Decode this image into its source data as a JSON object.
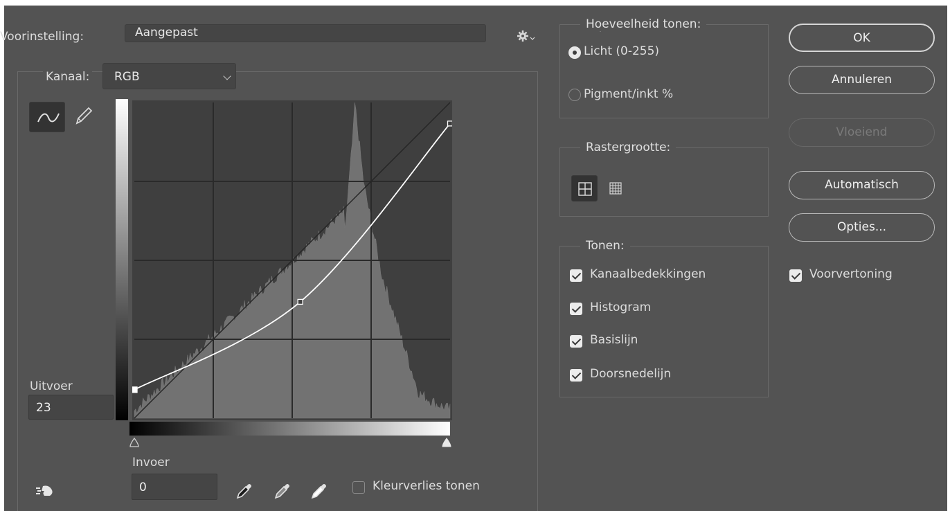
{
  "preset": {
    "label": "Voorinstelling:",
    "value": "Aangepast"
  },
  "channel": {
    "label": "Kanaal:",
    "value": "RGB"
  },
  "output": {
    "label": "Uitvoer",
    "value": "23"
  },
  "input": {
    "label": "Invoer",
    "value": "0"
  },
  "clipping_checkbox": {
    "label": "Kleurverlies tonen",
    "checked": false
  },
  "tone_amount": {
    "legend": "Hoeveelheid tonen:",
    "options": [
      {
        "label": "Licht (0-255)",
        "selected": true
      },
      {
        "label": "Pigment/inkt %",
        "selected": false
      }
    ]
  },
  "grid_size": {
    "legend": "Rastergrootte:",
    "selected": "simple"
  },
  "show": {
    "legend": "Tonen:",
    "options": [
      {
        "label": "Kanaalbedekkingen",
        "checked": true
      },
      {
        "label": "Histogram",
        "checked": true
      },
      {
        "label": "Basislijn",
        "checked": true
      },
      {
        "label": "Doorsnedelijn",
        "checked": true
      }
    ]
  },
  "buttons": {
    "ok": "OK",
    "cancel": "Annuleren",
    "smooth": "Vloeiend",
    "auto": "Automatisch",
    "options": "Opties..."
  },
  "preview": {
    "label": "Voorvertoning",
    "checked": true
  },
  "curve": {
    "control_points": [
      {
        "input": 0,
        "output": 23
      },
      {
        "input": 134,
        "output": 94
      },
      {
        "input": 255,
        "output": 238
      }
    ]
  },
  "icons": {
    "gear": "gear-icon",
    "curve_tool": "curve-tool-icon",
    "pencil": "pencil-icon",
    "hand": "target-adjust-icon",
    "eyedroppers": [
      "black-eyedropper-icon",
      "gray-eyedropper-icon",
      "white-eyedropper-icon"
    ]
  }
}
